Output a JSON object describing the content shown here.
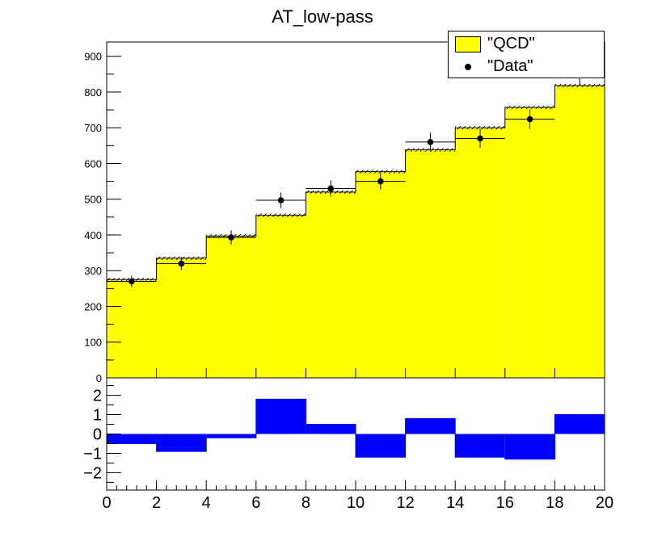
{
  "title": "AT_low-pass",
  "legend": {
    "entries": [
      {
        "label": "\"QCD\"",
        "color": "#ffff00",
        "style": "fill"
      },
      {
        "label": "\"Data\"",
        "color": "#000000",
        "style": "marker"
      }
    ],
    "placement": "top-right"
  },
  "chart_data": [
    {
      "type": "bar",
      "panel": "main",
      "bin_edges": [
        0,
        2,
        4,
        6,
        8,
        10,
        12,
        14,
        16,
        18,
        20
      ],
      "series": [
        {
          "name": "\"QCD\"",
          "style": "histogram",
          "color": "#ffff00",
          "values": [
            275,
            335,
            397,
            455,
            520,
            577,
            638,
            700,
            757,
            818
          ],
          "errors": [
            5,
            5,
            5,
            5,
            5,
            5,
            5,
            5,
            5,
            5
          ]
        },
        {
          "name": "\"Data\"",
          "style": "points",
          "color": "#000000",
          "x": [
            1,
            3,
            5,
            7,
            9,
            11,
            13,
            15,
            17,
            19
          ],
          "values": [
            270,
            320,
            393,
            497,
            530,
            550,
            660,
            670,
            724,
            850
          ],
          "errors": [
            16,
            18,
            20,
            22,
            23,
            23,
            26,
            26,
            27,
            29
          ]
        }
      ],
      "ylim": [
        0,
        940
      ],
      "yticks": [
        0,
        100,
        200,
        300,
        400,
        500,
        600,
        700,
        800,
        900
      ]
    },
    {
      "type": "bar",
      "panel": "ratio",
      "bin_edges": [
        0,
        2,
        4,
        6,
        8,
        10,
        12,
        14,
        16,
        18,
        20
      ],
      "series": [
        {
          "style": "histogram",
          "color": "#0000ff",
          "values": [
            -0.5,
            -0.9,
            -0.2,
            1.8,
            0.5,
            -1.2,
            0.8,
            -1.2,
            -1.3,
            1.0
          ]
        }
      ],
      "ylim": [
        -2.9,
        2.9
      ],
      "yticks": [
        -2,
        -1,
        0,
        1,
        2
      ],
      "ytick_labels": [
        "−2",
        "−1",
        "0",
        "1",
        "2"
      ],
      "xlim": [
        0,
        20
      ],
      "xticks": [
        0,
        2,
        4,
        6,
        8,
        10,
        12,
        14,
        16,
        18,
        20
      ]
    }
  ]
}
